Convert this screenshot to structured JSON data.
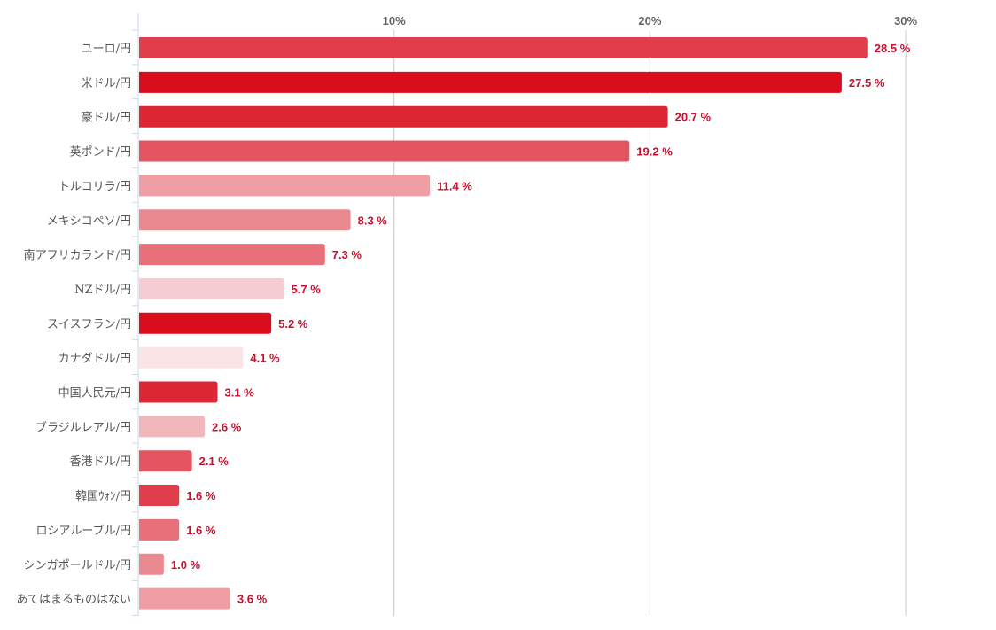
{
  "chart_data": {
    "type": "bar",
    "orientation": "horizontal",
    "categories": [
      "ユーロ/円",
      "米ドル/円",
      "豪ドル/円",
      "英ポンド/円",
      "トルコリラ/円",
      "メキシコペソ/円",
      "南アフリカランド/円",
      "NZドル/円",
      "スイスフラン/円",
      "カナダドル/円",
      "中国人民元/円",
      "ブラジルレアル/円",
      "香港ドル/円",
      "韓国ｳｫﾝ/円",
      "ロシアルーブル/円",
      "シンガポールドル/円",
      "あてはまるものはない"
    ],
    "values": [
      28.5,
      27.5,
      20.7,
      19.2,
      11.4,
      8.3,
      7.3,
      5.7,
      5.2,
      4.1,
      3.1,
      2.6,
      2.1,
      1.6,
      1.6,
      1.0,
      3.6
    ],
    "value_labels": [
      "28.5 %",
      "27.5 %",
      "20.7 %",
      "19.2 %",
      "11.4 %",
      "8.3 %",
      "7.3 %",
      "5.7 %",
      "5.2 %",
      "4.1 %",
      "3.1 %",
      "2.6 %",
      "2.1 %",
      "1.6 %",
      "1.6 %",
      "1.0 %",
      "3.6 %"
    ],
    "colors": [
      "#e03e4a",
      "#d90d1c",
      "#dc2634",
      "#e35560",
      "#ef9ea3",
      "#eb8990",
      "#e8707a",
      "#f6cdd1",
      "#d90d1c",
      "#fae4e6",
      "#dc2634",
      "#f1b7bb",
      "#e35560",
      "#e03e4a",
      "#e8707a",
      "#eb8990",
      "#ef9ea3"
    ],
    "x_ticks": [
      10,
      20,
      30
    ],
    "x_tick_labels": [
      "10%",
      "20%",
      "30%"
    ],
    "xlim": [
      0,
      33
    ],
    "grid": true,
    "title": "",
    "xlabel": "",
    "ylabel": ""
  }
}
